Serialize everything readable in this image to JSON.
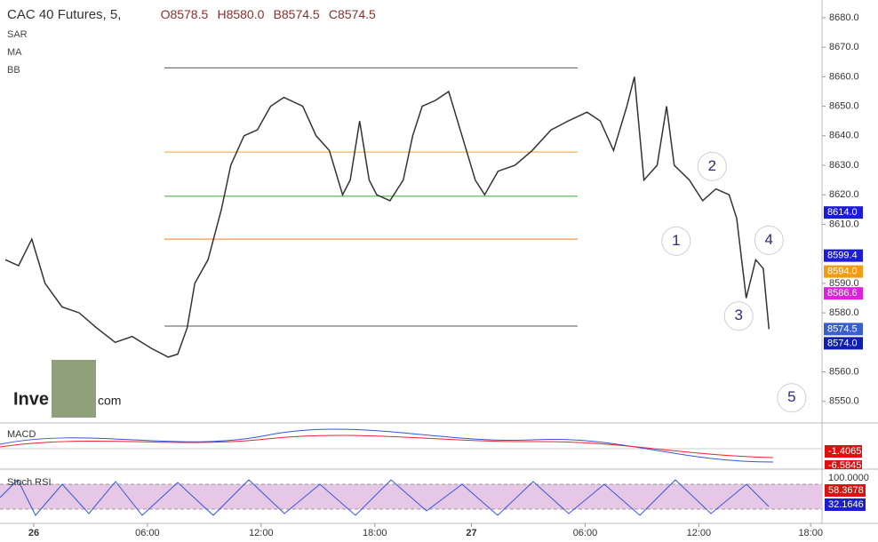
{
  "header": {
    "title": "CAC 40 Futures, 5,",
    "ohlc": [
      "O8578.5",
      "H8580.0",
      "B8574.5",
      "C8574.5"
    ],
    "indicators": [
      "SAR",
      "MA",
      "BB"
    ],
    "logo": [
      "Inve",
      "com"
    ]
  },
  "chart_data": {
    "type": "line",
    "color": "#333333",
    "x": [
      -1.5,
      -0.8,
      -0.1,
      0.6,
      1.5,
      2.4,
      3.3,
      4.3,
      5.2,
      6.2,
      7.1,
      7.6,
      8.1,
      8.5,
      9.2,
      9.9,
      10.4,
      11.1,
      11.8,
      12.5,
      13.2,
      14.2,
      14.9,
      15.6,
      16.3,
      16.7,
      17.2,
      17.7,
      18.1,
      18.8,
      19.5,
      20.0,
      20.5,
      21.2,
      21.9,
      22.6,
      23.3,
      23.8,
      24.5,
      25.4,
      26.3,
      27.3,
      28.2,
      29.2,
      29.9,
      30.6,
      31.3,
      31.7,
      32.2,
      32.9,
      33.4,
      33.8,
      34.6,
      35.3,
      36.0,
      36.7,
      37.1,
      37.6,
      38.1,
      38.5,
      38.8
    ],
    "values": [
      8598,
      8596,
      8605,
      8590,
      8582,
      8580,
      8575,
      8570,
      8572,
      8568,
      8565,
      8566,
      8575,
      8590,
      8598,
      8615,
      8630,
      8640,
      8642,
      8650,
      8653,
      8650,
      8640,
      8635,
      8620,
      8625,
      8645,
      8625,
      8620,
      8618,
      8625,
      8640,
      8650,
      8652,
      8655,
      8640,
      8625,
      8620,
      8628,
      8630,
      8635,
      8642,
      8645,
      8648,
      8645,
      8635,
      8650,
      8660,
      8625,
      8630,
      8650,
      8630,
      8625,
      8618,
      8622,
      8620,
      8612,
      8585,
      8598,
      8595,
      8574.5
    ],
    "xlim": [
      -1.78,
      41.6
    ],
    "ylim": [
      8543,
      8684.5
    ],
    "xticks": [
      {
        "value": 0,
        "label": "26"
      },
      {
        "value": 6,
        "label": "06:00"
      },
      {
        "value": 12,
        "label": "12:00"
      },
      {
        "value": 18,
        "label": "18:00"
      },
      {
        "value": 23.1,
        "label": "27"
      },
      {
        "value": 29.1,
        "label": "06:00"
      },
      {
        "value": 35.1,
        "label": "12:00"
      },
      {
        "value": 41.0,
        "label": "18:00"
      }
    ],
    "yticks": [
      {
        "value": 8550,
        "label": "8550.0"
      },
      {
        "value": 8560,
        "label": "8560.0"
      },
      {
        "value": 8580,
        "label": "8580.0"
      },
      {
        "value": 8590,
        "label": "8590.0"
      },
      {
        "value": 8610,
        "label": "8610.0"
      },
      {
        "value": 8620,
        "label": "8620.0"
      },
      {
        "value": 8630,
        "label": "8630.0"
      },
      {
        "value": 8640,
        "label": "8640.0"
      },
      {
        "value": 8650,
        "label": "8650.0"
      },
      {
        "value": 8660,
        "label": "8660.0"
      },
      {
        "value": 8670,
        "label": "8670.0"
      },
      {
        "value": 8680,
        "label": "8680.0"
      }
    ],
    "levels": [
      {
        "value": 8663,
        "color": "#555555",
        "x": [
          6.9,
          28.7
        ]
      },
      {
        "value": 8634.5,
        "color": "#f0a030",
        "x": [
          6.9,
          28.7
        ]
      },
      {
        "value": 8619.5,
        "color": "#33aa33",
        "x": [
          6.9,
          28.7
        ]
      },
      {
        "value": 8605,
        "color": "#f07a20",
        "x": [
          6.9,
          28.7
        ]
      },
      {
        "value": 8575.5,
        "color": "#555555",
        "x": [
          6.9,
          28.7
        ]
      }
    ],
    "price_labels": [
      {
        "value": 8614.0,
        "label": "8614.0",
        "color": "#1c1cd6"
      },
      {
        "value": 8599.4,
        "label": "8599.4",
        "color": "#1c1cd6"
      },
      {
        "value": 8594.0,
        "label": "8594.0",
        "color": "#f39c12"
      },
      {
        "value": 8586.6,
        "label": "8586.6",
        "color": "#e020e0"
      },
      {
        "value": 8574.5,
        "label": "8574.5",
        "color": "#3a5fcd"
      },
      {
        "value": 8574.0,
        "label": "8574.0",
        "color": "#0f1fb0"
      }
    ],
    "annotations": [
      {
        "text": "1",
        "x": 33.9,
        "y": 8604.3
      },
      {
        "text": "2",
        "x": 35.8,
        "y": 8629.6
      },
      {
        "text": "3",
        "x": 37.2,
        "y": 8578.9
      },
      {
        "text": "4",
        "x": 38.8,
        "y": 8604.6
      },
      {
        "text": "5",
        "x": 40.0,
        "y": 8551.2
      }
    ]
  },
  "macd": {
    "title": "MACD",
    "labels": [
      "-1.4065",
      "-6.5845"
    ]
  },
  "stoch": {
    "title": "Stoch RSI",
    "labels": [
      "100.0000",
      "58.3678",
      "32.1646"
    ]
  }
}
